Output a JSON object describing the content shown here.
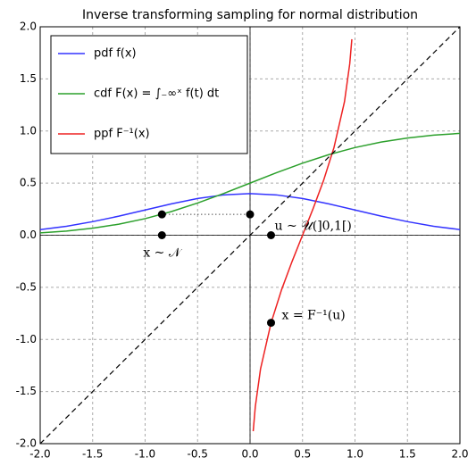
{
  "chart_data": {
    "type": "line",
    "title": "Inverse transforming sampling for normal distribution",
    "x": [
      -2,
      -1.75,
      -1.5,
      -1.25,
      -1,
      -0.75,
      -0.5,
      -0.25,
      0,
      0.25,
      0.5,
      0.75,
      1,
      1.25,
      1.5,
      1.75,
      2
    ],
    "series": [
      {
        "name": "pdf f(x)",
        "color": "#3333ff",
        "values": [
          0.054,
          0.086,
          0.13,
          0.183,
          0.242,
          0.301,
          0.352,
          0.387,
          0.399,
          0.387,
          0.352,
          0.301,
          0.242,
          0.183,
          0.13,
          0.086,
          0.054
        ]
      },
      {
        "name": "cdf F(x) = ∫₋∞ˣ f(t) dt",
        "color": "#2ca02c",
        "values": [
          0.023,
          0.04,
          0.067,
          0.106,
          0.159,
          0.227,
          0.309,
          0.401,
          0.5,
          0.599,
          0.691,
          0.773,
          0.841,
          0.894,
          0.933,
          0.96,
          0.977
        ]
      },
      {
        "name": "ppf F⁻¹(x)",
        "color": "#ee2222",
        "x": [
          0.03,
          0.05,
          0.1,
          0.2,
          0.3,
          0.4,
          0.5,
          0.6,
          0.7,
          0.8,
          0.9,
          0.95,
          0.97
        ],
        "values": [
          -1.881,
          -1.645,
          -1.282,
          -0.842,
          -0.524,
          -0.253,
          0,
          0.253,
          0.524,
          0.842,
          1.282,
          1.645,
          1.881
        ]
      },
      {
        "color": "#000000",
        "dash": true,
        "x": [
          -2,
          2
        ],
        "values": [
          -2,
          2
        ]
      }
    ],
    "points": {
      "color": "#000000",
      "x": [
        -0.84,
        0,
        0.2,
        -0.84,
        0.2
      ],
      "values": [
        0.2,
        0.2,
        0,
        0,
        -0.84
      ]
    },
    "annotations": [
      "x ~ 𝒩",
      "u ~ 𝒰(]0,1[)",
      "x = F⁻¹(u)"
    ],
    "xlim": [
      -2,
      2
    ],
    "ylim": [
      -2,
      2
    ],
    "xticks": [
      {
        "value": -2,
        "label": "-2.0"
      },
      -1.5,
      {
        "value": -1,
        "label": "-1.0"
      },
      -0.5,
      {
        "value": 0,
        "label": "0.0"
      },
      0.5,
      {
        "value": 1,
        "label": "1.0"
      },
      1.5,
      {
        "value": 2,
        "label": "2.0"
      }
    ],
    "yticks": [
      {
        "value": -2,
        "label": "-2.0"
      },
      -1.5,
      {
        "value": -1,
        "label": "-1.0"
      },
      -0.5,
      {
        "value": 0,
        "label": "0.0"
      },
      0.5,
      {
        "value": 1,
        "label": "1.0"
      },
      1.5,
      {
        "value": 2,
        "label": "2.0"
      }
    ],
    "grid": true,
    "legend": "upper left"
  }
}
